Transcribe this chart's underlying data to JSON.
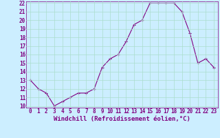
{
  "x": [
    0,
    1,
    2,
    3,
    4,
    5,
    6,
    7,
    8,
    9,
    10,
    11,
    12,
    13,
    14,
    15,
    16,
    17,
    18,
    19,
    20,
    21,
    22,
    23
  ],
  "y": [
    13,
    12,
    11.5,
    10,
    10.5,
    11,
    11.5,
    11.5,
    12,
    14.5,
    15.5,
    16,
    17.5,
    19.5,
    20,
    22,
    22,
    22,
    22,
    21,
    18.5,
    15,
    15.5,
    14.5
  ],
  "line_color": "#800080",
  "marker": "+",
  "marker_size": 3,
  "linewidth": 0.8,
  "xlabel": "Windchill (Refroidissement éolien,°C)",
  "xlabel_fontsize": 6.5,
  "bg_color": "#cceeff",
  "grid_color": "#aaddcc",
  "tick_color": "#800080",
  "ylim": [
    10,
    22
  ],
  "xlim": [
    -0.5,
    23.5
  ],
  "yticks": [
    10,
    11,
    12,
    13,
    14,
    15,
    16,
    17,
    18,
    19,
    20,
    21,
    22
  ],
  "xticks": [
    0,
    1,
    2,
    3,
    4,
    5,
    6,
    7,
    8,
    9,
    10,
    11,
    12,
    13,
    14,
    15,
    16,
    17,
    18,
    19,
    20,
    21,
    22,
    23
  ],
  "tick_fontsize": 5.5
}
